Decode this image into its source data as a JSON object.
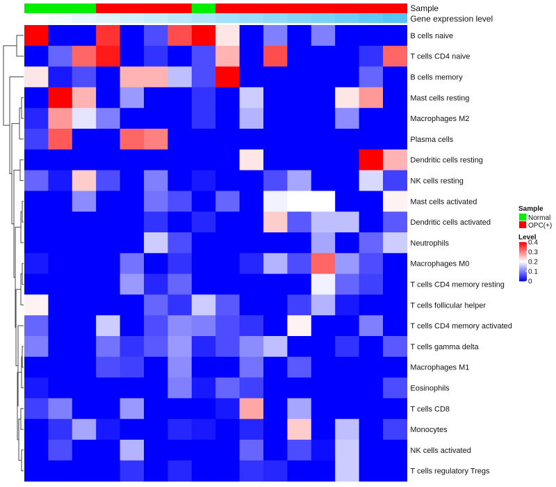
{
  "chart_data": {
    "type": "heatmap",
    "color_scale": {
      "low": "#0000ff",
      "mid": "#ffffff",
      "high": "#ff0000",
      "min": 0,
      "mid_value": 0.2,
      "max": 0.4
    },
    "rows": [
      "B cells naive",
      "T cells CD4 naive",
      "B cells memory",
      "Mast cells resting",
      "Macrophages M2",
      "Plasma cells",
      "Dendritic cells resting",
      "NK cells resting",
      "Mast cells activated",
      "Dendritic cells activated",
      "Neutrophils",
      "Macrophages M0",
      "T cells CD4 memory resting",
      "T cells follicular helper",
      "T cells CD4 memory activated",
      "T cells gamma delta",
      "Macrophages M1",
      "Eosinophils",
      "T cells CD8",
      "Monocytes",
      "NK cells activated",
      "T cells regulatory  Tregs"
    ],
    "sample_groups": [
      "Normal",
      "Normal",
      "Normal",
      "OPC(+)",
      "OPC(+)",
      "OPC(+)",
      "OPC(+)",
      "Normal",
      "OPC(+)",
      "OPC(+)",
      "OPC(+)",
      "OPC(+)",
      "OPC(+)",
      "OPC(+)",
      "OPC(+)",
      "OPC(+)"
    ],
    "expression_levels": [
      0.0,
      0.01,
      0.02,
      0.03,
      0.04,
      0.05,
      0.06,
      0.07,
      0.08,
      0.09,
      0.1,
      0.11,
      0.12,
      0.13,
      0.14,
      0.15
    ],
    "values": [
      [
        0.4,
        0.0,
        0.0,
        0.36,
        0.0,
        0.06,
        0.34,
        0.4,
        0.22,
        0.0,
        0.1,
        0.0,
        0.1,
        0.0,
        0.0,
        0.0
      ],
      [
        0.0,
        0.08,
        0.32,
        0.38,
        0.0,
        0.04,
        0.0,
        0.06,
        0.26,
        0.0,
        0.34,
        0.0,
        0.0,
        0.0,
        0.04,
        0.32
      ],
      [
        0.22,
        0.02,
        0.06,
        0.0,
        0.26,
        0.26,
        0.15,
        0.06,
        0.4,
        0.0,
        0.0,
        0.0,
        0.0,
        0.0,
        0.08,
        0.0
      ],
      [
        0.0,
        0.4,
        0.26,
        0.0,
        0.12,
        0.0,
        0.0,
        0.04,
        0.0,
        0.16,
        0.0,
        0.0,
        0.0,
        0.22,
        0.28,
        0.0
      ],
      [
        0.03,
        0.28,
        0.18,
        0.1,
        0.0,
        0.0,
        0.0,
        0.04,
        0.0,
        0.14,
        0.0,
        0.0,
        0.0,
        0.11,
        0.0,
        0.0
      ],
      [
        0.05,
        0.33,
        0.0,
        0.0,
        0.32,
        0.3,
        0.0,
        0.0,
        0.0,
        0.0,
        0.0,
        0.0,
        0.0,
        0.0,
        0.0,
        0.0
      ],
      [
        0.0,
        0.0,
        0.0,
        0.0,
        0.0,
        0.0,
        0.0,
        0.0,
        0.0,
        0.22,
        0.0,
        0.0,
        0.0,
        0.0,
        0.4,
        0.26
      ],
      [
        0.08,
        0.02,
        0.24,
        0.06,
        0.0,
        0.1,
        0.0,
        0.02,
        0.0,
        0.0,
        0.06,
        0.13,
        0.0,
        0.0,
        0.17,
        0.05
      ],
      [
        0.0,
        0.0,
        0.11,
        0.0,
        0.0,
        0.09,
        0.06,
        0.0,
        0.08,
        0.0,
        0.19,
        0.2,
        0.2,
        0.0,
        0.0,
        0.21
      ],
      [
        0.0,
        0.0,
        0.0,
        0.0,
        0.0,
        0.04,
        0.0,
        0.03,
        0.0,
        0.0,
        0.24,
        0.07,
        0.15,
        0.15,
        0.0,
        0.07
      ],
      [
        0.0,
        0.0,
        0.0,
        0.0,
        0.0,
        0.16,
        0.06,
        0.0,
        0.0,
        0.0,
        0.0,
        0.0,
        0.13,
        0.0,
        0.08,
        0.16
      ],
      [
        0.02,
        0.0,
        0.0,
        0.0,
        0.09,
        0.0,
        0.04,
        0.0,
        0.0,
        0.03,
        0.14,
        0.06,
        0.32,
        0.12,
        0.06,
        0.0
      ],
      [
        0.0,
        0.0,
        0.0,
        0.0,
        0.12,
        0.03,
        0.08,
        0.0,
        0.0,
        0.0,
        0.0,
        0.0,
        0.19,
        0.08,
        0.05,
        0.0
      ],
      [
        0.21,
        0.0,
        0.0,
        0.0,
        0.0,
        0.08,
        0.04,
        0.16,
        0.07,
        0.0,
        0.0,
        0.05,
        0.14,
        0.02,
        0.0,
        0.0
      ],
      [
        0.08,
        0.0,
        0.0,
        0.16,
        0.0,
        0.06,
        0.11,
        0.1,
        0.06,
        0.04,
        0.0,
        0.21,
        0.0,
        0.0,
        0.1,
        0.0
      ],
      [
        0.1,
        0.0,
        0.0,
        0.09,
        0.04,
        0.07,
        0.12,
        0.03,
        0.06,
        0.11,
        0.15,
        0.0,
        0.0,
        0.04,
        0.0,
        0.07
      ],
      [
        0.0,
        0.0,
        0.0,
        0.06,
        0.05,
        0.0,
        0.11,
        0.0,
        0.0,
        0.09,
        0.0,
        0.07,
        0.0,
        0.0,
        0.0,
        0.0
      ],
      [
        0.02,
        0.0,
        0.0,
        0.0,
        0.0,
        0.0,
        0.1,
        0.02,
        0.08,
        0.05,
        0.0,
        0.0,
        0.0,
        0.0,
        0.0,
        0.06
      ],
      [
        0.05,
        0.1,
        0.0,
        0.0,
        0.12,
        0.0,
        0.0,
        0.0,
        0.02,
        0.27,
        0.0,
        0.13,
        0.0,
        0.0,
        0.0,
        0.0
      ],
      [
        0.0,
        0.04,
        0.13,
        0.02,
        0.0,
        0.0,
        0.03,
        0.02,
        0.0,
        0.03,
        0.0,
        0.24,
        0.0,
        0.15,
        0.0,
        0.05
      ],
      [
        0.0,
        0.06,
        0.0,
        0.0,
        0.14,
        0.0,
        0.0,
        0.0,
        0.0,
        0.08,
        0.0,
        0.06,
        0.01,
        0.16,
        0.0,
        0.0
      ],
      [
        0.0,
        0.0,
        0.0,
        0.0,
        0.04,
        0.0,
        0.03,
        0.0,
        0.0,
        0.04,
        0.03,
        0.0,
        0.0,
        0.16,
        0.0,
        0.0
      ]
    ],
    "annotations": [
      {
        "name": "Sample",
        "colors": {
          "Normal": "#00ee00",
          "OPC(+)": "#ff0000"
        }
      },
      {
        "name": "Gene expression level",
        "low_color": "#ffffff",
        "high_color": "#56c5f5"
      }
    ],
    "legend": {
      "position": "right",
      "sample_title": "Sample",
      "sample_items": [
        {
          "label": "Normal",
          "color": "#00ee00"
        },
        {
          "label": "OPC(+)",
          "color": "#ff0000"
        }
      ],
      "level_title": "Level",
      "level_ticks": [
        "0.4",
        "0.3",
        "0.2",
        "0.1",
        "0"
      ]
    },
    "row_dendrogram": true
  }
}
